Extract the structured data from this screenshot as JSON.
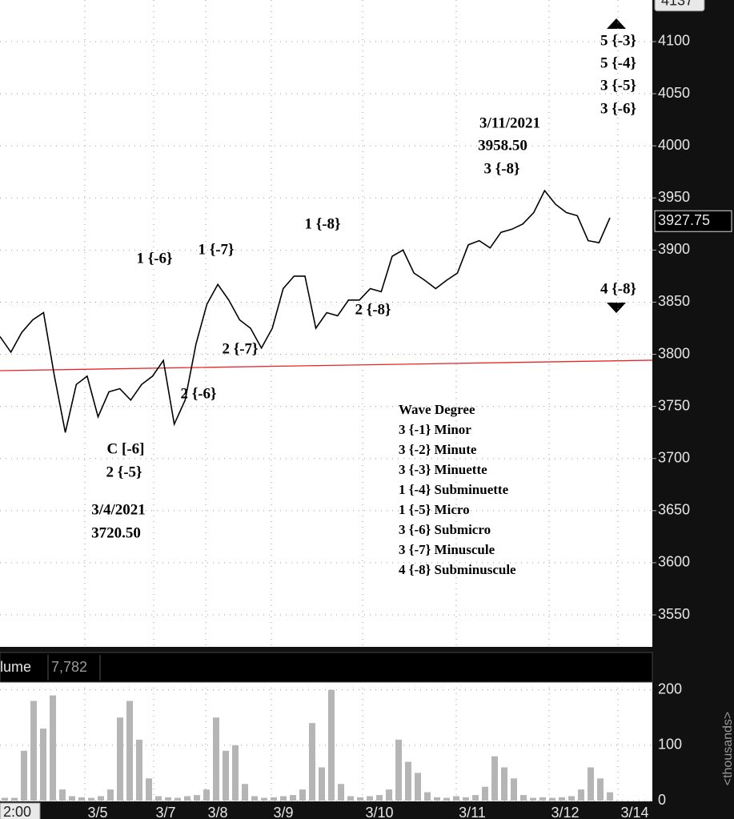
{
  "chart_data": [
    {
      "type": "line",
      "color": "#000000",
      "grid": true,
      "values": [
        3817,
        3802,
        3821,
        3833,
        3840,
        3779,
        3725,
        3771,
        3779,
        3740,
        3764,
        3767,
        3756,
        3771,
        3779,
        3794,
        3733,
        3756,
        3810,
        3848,
        3867,
        3852,
        3833,
        3825,
        3806,
        3825,
        3863,
        3875,
        3875,
        3825,
        3840,
        3837,
        3852,
        3852,
        3863,
        3860,
        3894,
        3900,
        3878,
        3871,
        3863,
        3871,
        3878,
        3905,
        3909,
        3902,
        3917,
        3920,
        3925,
        3936,
        3957,
        3944,
        3936,
        3933,
        3909,
        3907,
        3931
      ],
      "ylim": [
        3519.3,
        4139.9
      ],
      "yticks": [
        3550,
        3600,
        3650,
        3700,
        3750,
        3800,
        3850,
        3900,
        3950,
        4000,
        4050,
        4100
      ],
      "trendline": {
        "color": "#e8262a",
        "values": [
          3784.3,
          3794.3
        ]
      },
      "last_price": 3927.75,
      "cursor_value": 4137,
      "annotations": [
        "5 {-3}",
        "5 {-4}",
        "3 {-5}",
        "3 {-6}",
        "3/11/2021",
        "3958.50",
        "3 {-8}",
        "1 {-8}",
        "1 {-6}",
        "1 {-7}",
        "2 {-8}",
        "2 {-7}",
        "2 {-6}",
        "4 {-8}",
        "C [-6]",
        "2 {-5}",
        "3/4/2021",
        "3720.50"
      ],
      "legend_title": "Wave Degree",
      "legend_items": [
        "3 {-1} Minor",
        "3 {-2} Minute",
        "3 {-3} Minuette",
        "1 {-4} Subminuette",
        "1 {-5} Micro",
        "3 {-6} Submicro",
        "3 {-7} Minuscule",
        "4 {-8} Subminuscule"
      ]
    },
    {
      "type": "bar",
      "title": "lume",
      "last_value": "7,782",
      "color": "#b5b5b5",
      "values": [
        5,
        5,
        90,
        180,
        130,
        190,
        20,
        8,
        6,
        5,
        8,
        20,
        150,
        180,
        110,
        40,
        8,
        6,
        5,
        8,
        10,
        20,
        150,
        90,
        100,
        30,
        8,
        5,
        6,
        8,
        10,
        20,
        140,
        60,
        200,
        30,
        8,
        6,
        8,
        10,
        20,
        110,
        70,
        50,
        15,
        6,
        5,
        8,
        6,
        10,
        25,
        80,
        60,
        40,
        10,
        5,
        6,
        5,
        6,
        8,
        20,
        60,
        40,
        15
      ],
      "ylim": [
        0,
        214
      ],
      "yticks": [
        0,
        100,
        200
      ],
      "y_label": "<thousands>",
      "time_label": "2:00",
      "x_labels": [
        "3/5",
        "3/7",
        "3/8",
        "3/9",
        "3/10",
        "3/11",
        "3/12",
        "3/14"
      ]
    }
  ]
}
